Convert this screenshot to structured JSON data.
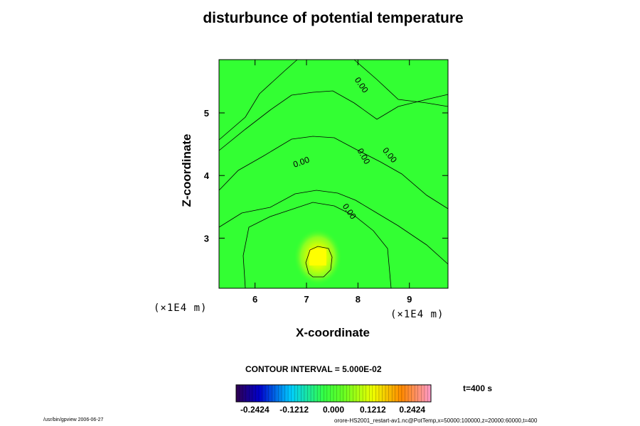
{
  "chart_data": {
    "type": "heatmap",
    "title": "disturbunce of potential temperature",
    "xlabel": "X-coordinate",
    "ylabel": "Z-coordinate",
    "x_unit_label": "(×1E4 m)",
    "y_unit_label": "(×1E4 m)",
    "xlim": [
      5.3,
      9.75
    ],
    "ylim": [
      2.2,
      5.85
    ],
    "x_ticks": [
      6,
      7,
      8,
      9
    ],
    "y_ticks": [
      3,
      4,
      5
    ],
    "contour_label": "0.00",
    "contour_labels_count": 5,
    "contour_interval_text": "CONTOUR INTERVAL = 5.000E-02",
    "anomaly": {
      "x": 7.22,
      "z": 2.7,
      "peak_value": 0.1212
    },
    "colorbar": {
      "ticks": [
        "-0.2424",
        "-0.1212",
        "0.000",
        "0.1212",
        "0.2424"
      ],
      "range": [
        -0.3,
        0.3
      ],
      "colormap": "rainbow"
    },
    "time_text": "t=400 s",
    "colors": {
      "background_field": "#33ff33",
      "peak": "#ffff00",
      "contour_line": "#000000"
    }
  },
  "footer": {
    "left": "/usr/bin/gpview 2006-06-27",
    "right": "orore-HS2001_restart-av1.nc@PotTemp,x=50000:100000,z=20000:60000,t=400"
  }
}
